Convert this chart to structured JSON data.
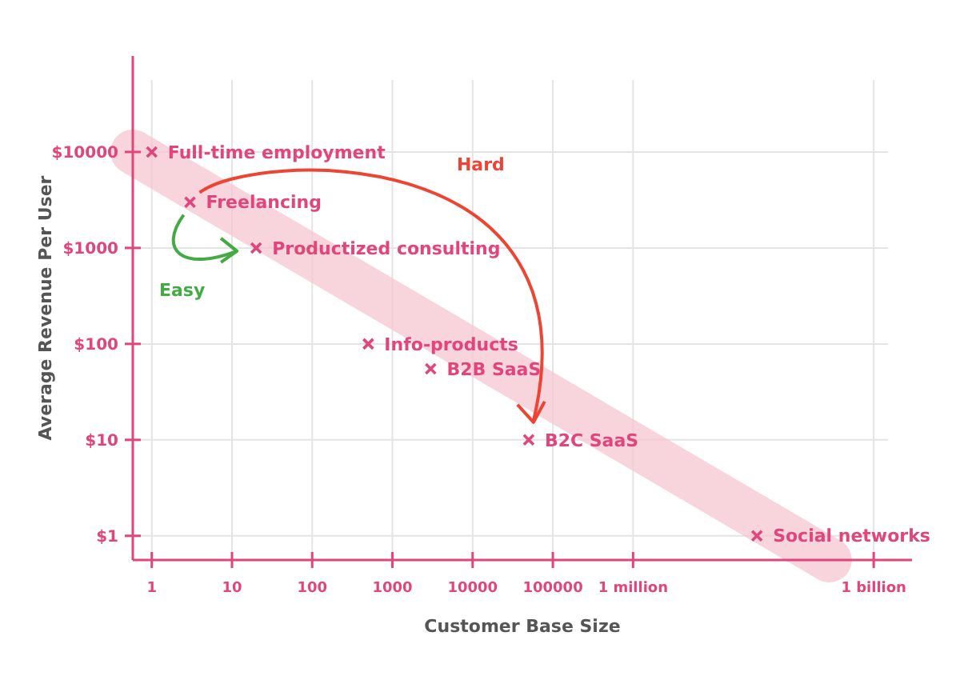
{
  "chart_data": {
    "type": "scatter",
    "xlabel": "Customer Base Size",
    "ylabel": "Average Revenue Per User",
    "log": "xy",
    "grid": true,
    "marker": "cross",
    "xlim": [
      0.58,
      3000000000
    ],
    "ylim": [
      0.56,
      100000
    ],
    "xticks": [
      1,
      10,
      100,
      1000,
      10000,
      100000,
      {
        "value": 1000000,
        "label": "1 million"
      },
      {
        "value": 1000000000,
        "label": "1 billion"
      }
    ],
    "yticks": [
      {
        "value": 1,
        "label": "$1"
      },
      {
        "value": 10,
        "label": "$10"
      },
      {
        "value": 100,
        "label": "$100"
      },
      {
        "value": 1000,
        "label": "$1000"
      },
      {
        "value": 10000,
        "label": "$10000"
      }
    ],
    "series": [
      {
        "type": "line",
        "marker": "none",
        "color": "#f5c6d2",
        "x": [
          0.58,
          280000000
        ],
        "values": [
          10000,
          0.56
        ]
      },
      {
        "color": "#e0457b",
        "x": [
          1,
          3,
          20,
          500,
          3000,
          50000,
          35000000
        ],
        "values": [
          10000,
          3000,
          1000,
          100,
          55,
          10,
          1
        ]
      }
    ],
    "annotations": [
      {
        "text": "Full-time employment",
        "x": 1,
        "y": 10000
      },
      {
        "text": "Freelancing",
        "x": 3,
        "y": 3000
      },
      {
        "text": "Productized consulting",
        "x": 20,
        "y": 1000
      },
      {
        "text": "Info-products",
        "x": 500,
        "y": 100
      },
      {
        "text": "B2B SaaS",
        "x": 3000,
        "y": 55
      },
      {
        "text": "B2C SaaS",
        "x": 50000,
        "y": 10
      },
      {
        "text": "Social networks",
        "x": 35000000,
        "y": 1
      },
      "Hard",
      "Easy"
    ]
  }
}
